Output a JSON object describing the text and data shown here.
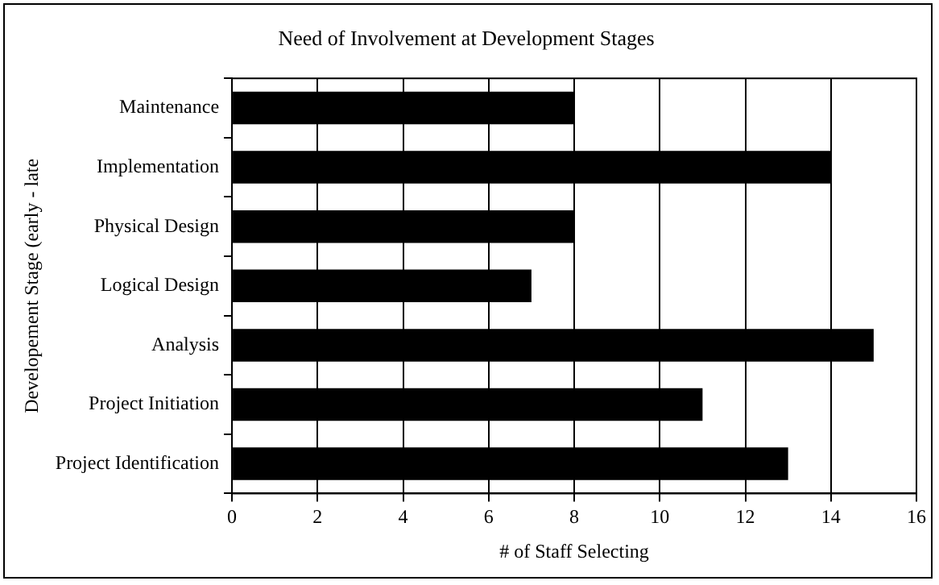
{
  "chart_data": {
    "type": "bar",
    "orientation": "horizontal",
    "title": "Need of Involvement at Development Stages",
    "xlabel": "# of Staff Selecting",
    "ylabel": "Developement Stage (early - late",
    "categories": [
      "Maintenance",
      "Implementation",
      "Physical Design",
      "Logical Design",
      "Analysis",
      "Project Initiation",
      "Project Identification"
    ],
    "values": [
      8,
      14,
      8,
      7,
      15,
      11,
      13
    ],
    "color": "#000000",
    "xlim": [
      0,
      16
    ],
    "xticks": [
      0,
      2,
      4,
      6,
      8,
      10,
      12,
      14,
      16
    ],
    "grid": "x",
    "legend": false
  }
}
